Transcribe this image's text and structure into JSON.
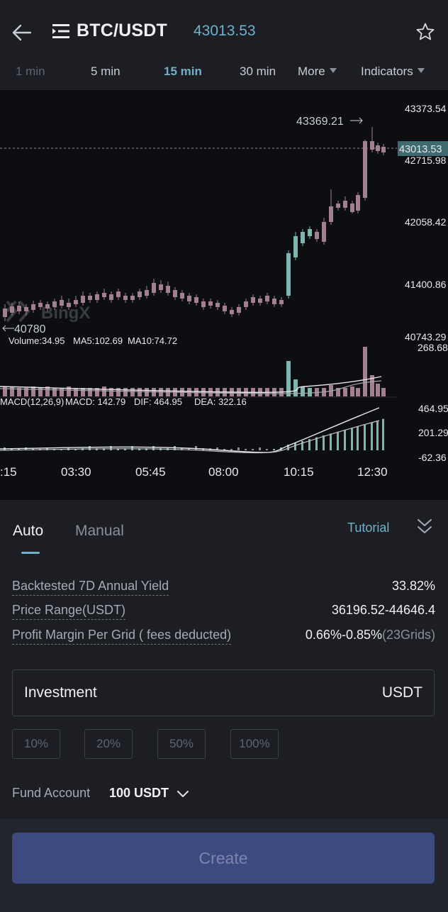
{
  "header": {
    "pair": "BTC/USDT",
    "price": "43013.53"
  },
  "timeframes": [
    {
      "label": "1 min"
    },
    {
      "label": "5 min"
    },
    {
      "label": "15 min"
    },
    {
      "label": "30 min"
    },
    {
      "label": "More"
    },
    {
      "label": "Indicators"
    }
  ],
  "chart": {
    "price_axis": [
      "43373.54",
      "42715.98",
      "42058.42",
      "41400.86",
      "40743.29"
    ],
    "current_price_tag": "43013.53",
    "high_marker": "43369.21",
    "low_marker": "40780",
    "volume_axis_top": "268.68",
    "macd_axis": [
      "464.95",
      "201.29",
      "-62.36"
    ],
    "volume_legend": {
      "volume": "Volume:34.95",
      "ma5": "MA5:102.69",
      "ma10": "MA10:74.72"
    },
    "macd_legend": {
      "name": "MACD(12,26,9)",
      "macd": "MACD: 142.79",
      "dif": "DIF: 464.95",
      "dea": "DEA: 322.16"
    },
    "time_labels": [
      ":15",
      "03:30",
      "05:45",
      "08:00",
      "10:15",
      "12:30"
    ],
    "watermark": "BingX",
    "colors": {
      "up": "#7fb5b0",
      "down": "#a2808f",
      "line": "#e8e8e8"
    }
  },
  "panel": {
    "tabs": {
      "auto": "Auto",
      "manual": "Manual"
    },
    "tutorial": "Tutorial",
    "rows": [
      {
        "label": "Backtested 7D Annual Yield",
        "value": "33.82%"
      },
      {
        "label": "Price Range(USDT)",
        "value": "36196.52-44646.4"
      },
      {
        "label": "Profit Margin Per Grid ( fees deducted)",
        "value": "0.66%-0.85%",
        "sub": "(23Grids)"
      }
    ],
    "investment": {
      "label": "Investment",
      "unit": "USDT"
    },
    "percent_buttons": [
      "10%",
      "20%",
      "50%",
      "100%"
    ],
    "fund_account": {
      "label": "Fund Account",
      "value": "100 USDT"
    },
    "create": "Create"
  }
}
